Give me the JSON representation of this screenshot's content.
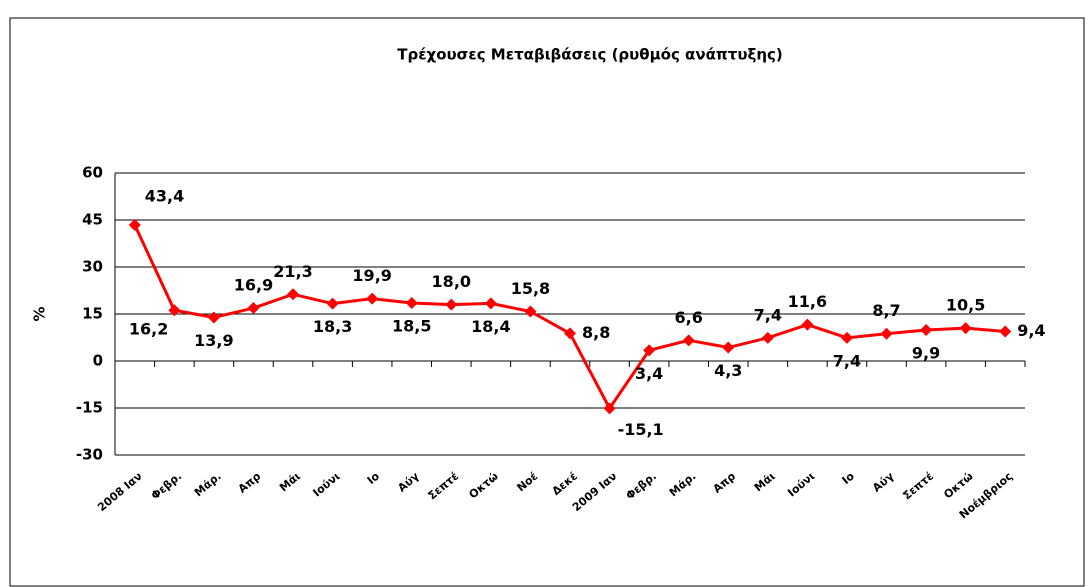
{
  "chart_data": {
    "type": "line",
    "title": "Τρέχουσες Μεταβιβάσεις (ρυθμός ανάπτυξης)",
    "ylabel": "%",
    "categories": [
      "2008 Ιαν",
      "Φεβρ.",
      "Μάρ.",
      "Απρ",
      "Μάι",
      "Ιούνι",
      "Ιο",
      "Αύγ",
      "Σεπτέ",
      "Οκτώ",
      "Νοέ",
      "Δεκέ",
      "2009 Ιαν",
      "Φεβρ.",
      "Μάρ.",
      "Απρ",
      "Μάι",
      "Ιούνι",
      "Ιο",
      "Αύγ",
      "Σεπτέ",
      "Οκτώ",
      "Νοέμβριος"
    ],
    "series": [
      {
        "name": "Τρέχουσες Μεταβιβάσεις",
        "color": "#ff0000",
        "values": [
          43.4,
          16.2,
          13.9,
          16.9,
          21.3,
          18.3,
          19.9,
          18.5,
          18.0,
          18.4,
          15.8,
          8.8,
          -15.1,
          3.4,
          6.6,
          4.3,
          7.4,
          11.6,
          7.4,
          8.7,
          9.9,
          10.5,
          9.4
        ],
        "value_labels": [
          "43,4",
          "16,2",
          "13,9",
          "16,9",
          "21,3",
          "18,3",
          "19,9",
          "18,5",
          "18,0",
          "18,4",
          "15,8",
          "8,8",
          "-15,1",
          "3,4",
          "6,6",
          "4,3",
          "7,4",
          "11,6",
          "7,4",
          "8,7",
          "9,9",
          "10,5",
          "9,4"
        ]
      }
    ],
    "ylim": [
      -30,
      60
    ],
    "yticks": [
      -30,
      -15,
      0,
      15,
      30,
      45,
      60
    ],
    "grid": true
  }
}
